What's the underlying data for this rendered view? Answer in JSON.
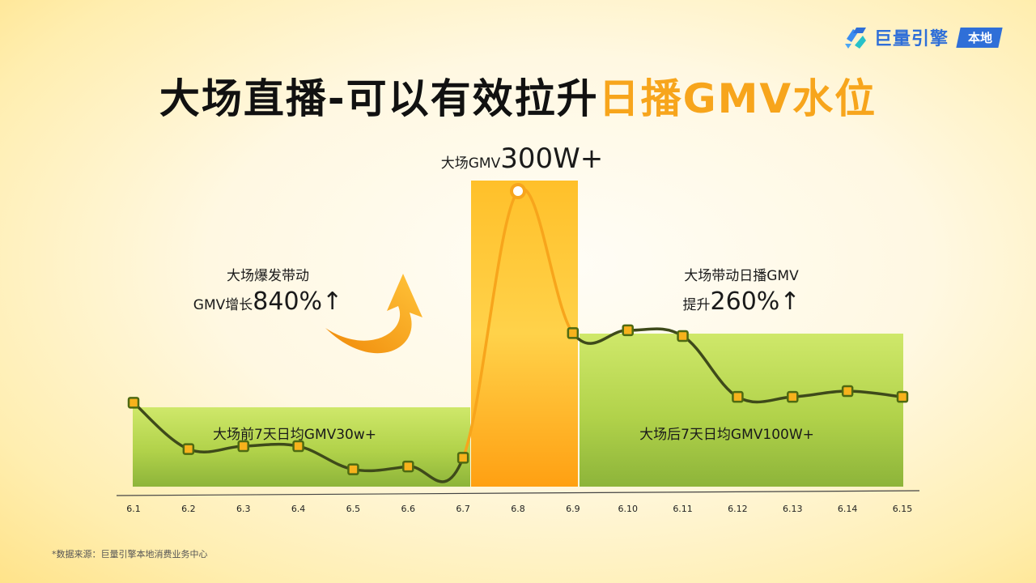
{
  "brand": {
    "logo_text": "巨量引擎",
    "badge": "本地",
    "logo_icon": "juliang-engine-logo-icon"
  },
  "title": {
    "main": "大场直播-可以有效拉升",
    "highlight": "日播GMV水位"
  },
  "annotations": {
    "peak_small": "大场GMV",
    "peak_big": "300W+",
    "left_line1": "大场爆发带动",
    "left_line2_small": "GMV增长",
    "left_line2_big": "840%↑",
    "right_line1": "大场带动日播GMV",
    "right_line2_small": "提升",
    "right_line2_big": "260%↑"
  },
  "bands": {
    "before": "大场前7天日均GMV30w+",
    "after": "大场后7天日均GMV100W+"
  },
  "source": "*数据来源：巨量引擎本地消费业务中心",
  "colors": {
    "accent_orange": "#f7a51c",
    "green_band": "#b3d84a",
    "line_dark": "#3e4a1a",
    "brand_blue": "#2f6fd8"
  },
  "chart_data": {
    "type": "line",
    "categories": [
      "6.1",
      "6.2",
      "6.3",
      "6.4",
      "6.5",
      "6.6",
      "6.7",
      "6.8",
      "6.9",
      "6.10",
      "6.11",
      "6.12",
      "6.13",
      "6.14",
      "6.15"
    ],
    "series": [
      {
        "values": [
          27,
          11,
          12,
          12,
          4,
          5,
          8,
          100,
          51,
          52,
          50,
          29,
          29,
          31,
          29
        ]
      }
    ],
    "ylim": [
      0,
      100
    ],
    "highlight_index": 7,
    "grid": false
  }
}
